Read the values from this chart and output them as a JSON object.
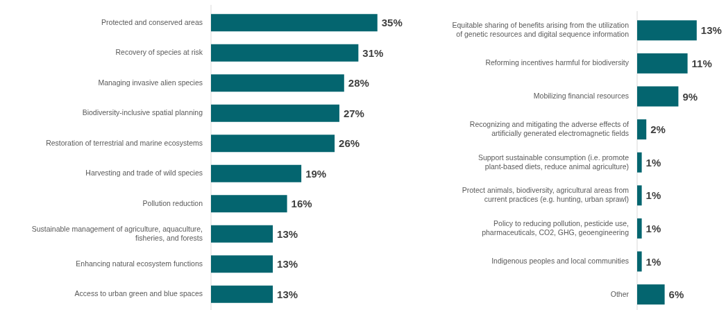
{
  "chart_data": [
    {
      "type": "bar",
      "orientation": "horizontal",
      "color": "#04656f",
      "categories": [
        "Protected and conserved areas",
        "Recovery of species at risk",
        "Managing invasive alien species",
        "Biodiversity-inclusive spatial planning",
        "Restoration of terrestrial and marine ecosystems",
        "Harvesting and trade of wild species",
        "Pollution reduction",
        "Sustainable management of agriculture, aquaculture, fisheries, and forests",
        "Enhancing natural ecosystem functions",
        "Access to urban green and blue spaces"
      ],
      "values": [
        35,
        31,
        28,
        27,
        26,
        19,
        16,
        13,
        13,
        13
      ],
      "value_labels": [
        "35%",
        "31%",
        "28%",
        "27%",
        "26%",
        "19%",
        "16%",
        "13%",
        "13%",
        "13%"
      ]
    },
    {
      "type": "bar",
      "orientation": "horizontal",
      "color": "#04656f",
      "categories": [
        "Equitable sharing of benefits arising from the utilization of genetic resources and digital sequence information",
        "Reforming incentives harmful for biodiversity",
        "Mobilizing financial resources",
        "Recognizing and mitigating the adverse effects of artificially generated electromagnetic fields",
        "Support sustainable consumption (i.e. promote plant-based diets, reduce animal agriculture)",
        "Protect animals, biodiversity, agricultural areas from current practices (e.g. hunting, urban sprawl)",
        "Policy to reducing pollution, pesticide use, pharmaceuticals, CO2, GHG, geoengineering",
        "Indigenous peoples and local communities",
        "Other"
      ],
      "values": [
        13,
        11,
        9,
        2,
        1,
        1,
        1,
        1,
        6
      ],
      "value_labels": [
        "13%",
        "11%",
        "9%",
        "2%",
        "1%",
        "1%",
        "1%",
        "1%",
        "6%"
      ]
    }
  ]
}
